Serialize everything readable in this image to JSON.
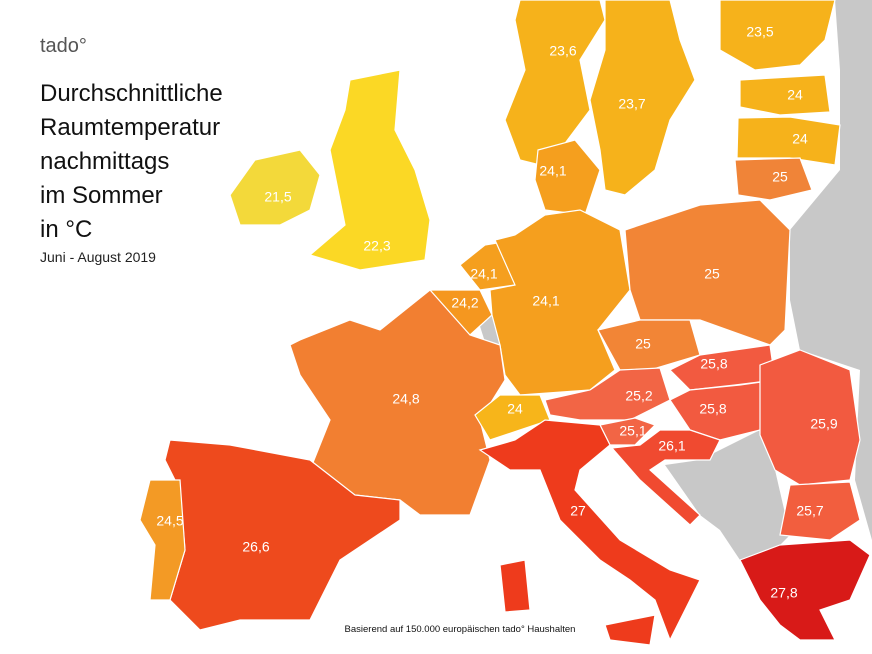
{
  "brand": "tado°",
  "title": [
    "Durchschnittliche",
    "Raumtemperatur",
    "nachmittags",
    "im Sommer",
    "in °C"
  ],
  "subtitle": "Juni - August 2019",
  "footnote": "Basierend auf 150.000 europäischen tado° Haushalten",
  "regions": [
    {
      "label": "23,6",
      "color": "#f6b21b"
    },
    {
      "label": "23,7",
      "color": "#f6b21b"
    },
    {
      "label": "23,5",
      "color": "#f6b21b"
    },
    {
      "label": "24",
      "color": "#f6b21b"
    },
    {
      "label": "24",
      "color": "#f6b21b"
    },
    {
      "label": "25",
      "color": "#f08438"
    },
    {
      "label": "21,5",
      "color": "#f3d93a"
    },
    {
      "label": "22,3",
      "color": "#fbd825"
    },
    {
      "label": "24,1",
      "color": "#f59f1e"
    },
    {
      "label": "24,1",
      "color": "#f59f1e"
    },
    {
      "label": "24,2",
      "color": "#f5971f"
    },
    {
      "label": "24,1",
      "color": "#f59f1e"
    },
    {
      "label": "25",
      "color": "#f28536"
    },
    {
      "label": "25",
      "color": "#f28536"
    },
    {
      "label": "24,8",
      "color": "#f27f31"
    },
    {
      "label": "24",
      "color": "#f7b51a"
    },
    {
      "label": "25,2",
      "color": "#f26545"
    },
    {
      "label": "25,8",
      "color": "#f25a40"
    },
    {
      "label": "25,8",
      "color": "#f25a40"
    },
    {
      "label": "25,1",
      "color": "#f26545"
    },
    {
      "label": "26,1",
      "color": "#f04a30"
    },
    {
      "label": "25,9",
      "color": "#f25a40"
    },
    {
      "label": "25,7",
      "color": "#f25e3e"
    },
    {
      "label": "27",
      "color": "#ee3b1c"
    },
    {
      "label": "26,6",
      "color": "#ee4a1d"
    },
    {
      "label": "24,5",
      "color": "#f39a25"
    },
    {
      "label": "27,8",
      "color": "#d81a18"
    }
  ]
}
